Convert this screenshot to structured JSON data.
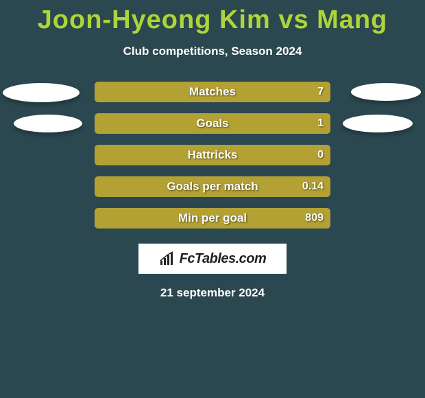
{
  "background_color": "#2b474f",
  "title": "Joon-Hyeong Kim vs Mang",
  "title_color": "#add43a",
  "subtitle": "Club competitions, Season 2024",
  "stats": [
    {
      "label": "Matches",
      "value": "7",
      "bar_color": "#b3a133",
      "show_left_ellipse": true,
      "show_right_ellipse": true,
      "left_large": true,
      "right_large": false
    },
    {
      "label": "Goals",
      "value": "1",
      "bar_color": "#b3a133",
      "show_left_ellipse": true,
      "show_right_ellipse": true,
      "left_large": false,
      "right_large": true
    },
    {
      "label": "Hattricks",
      "value": "0",
      "bar_color": "#b3a133",
      "show_left_ellipse": false,
      "show_right_ellipse": false
    },
    {
      "label": "Goals per match",
      "value": "0.14",
      "bar_color": "#b3a133",
      "show_left_ellipse": false,
      "show_right_ellipse": false
    },
    {
      "label": "Min per goal",
      "value": "809",
      "bar_color": "#b3a133",
      "show_left_ellipse": false,
      "show_right_ellipse": false
    }
  ],
  "brand": "FcTables.com",
  "date": "21 september 2024"
}
